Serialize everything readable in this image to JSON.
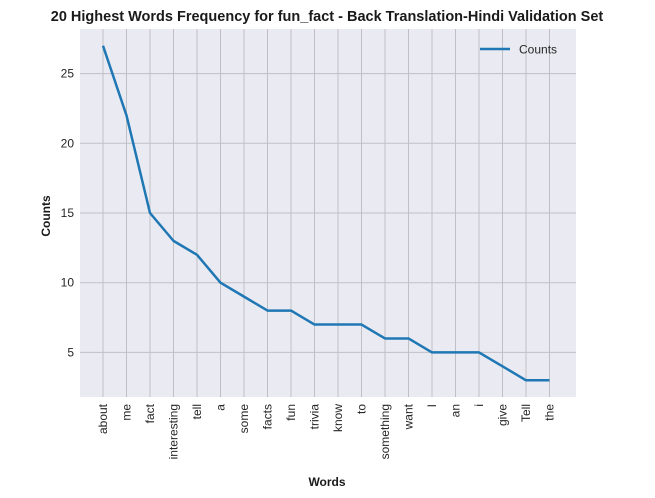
{
  "chart_data": {
    "type": "line",
    "title": "20 Highest Words Frequency for fun_fact - Back Translation-Hindi Validation Set",
    "xlabel": "Words",
    "ylabel": "Counts",
    "categories": [
      "about",
      "me",
      "fact",
      "interesting",
      "tell",
      "a",
      "some",
      "facts",
      "fun",
      "trivia",
      "know",
      "to",
      "something",
      "want",
      "I",
      "an",
      "i",
      "give",
      "Tell",
      "the"
    ],
    "series": [
      {
        "name": "Counts",
        "values": [
          27,
          22,
          15,
          13,
          12,
          10,
          9,
          8,
          8,
          7,
          7,
          7,
          6,
          6,
          5,
          5,
          5,
          4,
          3,
          3
        ],
        "color": "#1f77b4"
      }
    ],
    "ylim": [
      1.8,
      28.2
    ],
    "yticks": [
      5,
      10,
      15,
      20,
      25
    ],
    "grid": true,
    "legend_position": "top-right",
    "background": "#eaeaf2"
  }
}
